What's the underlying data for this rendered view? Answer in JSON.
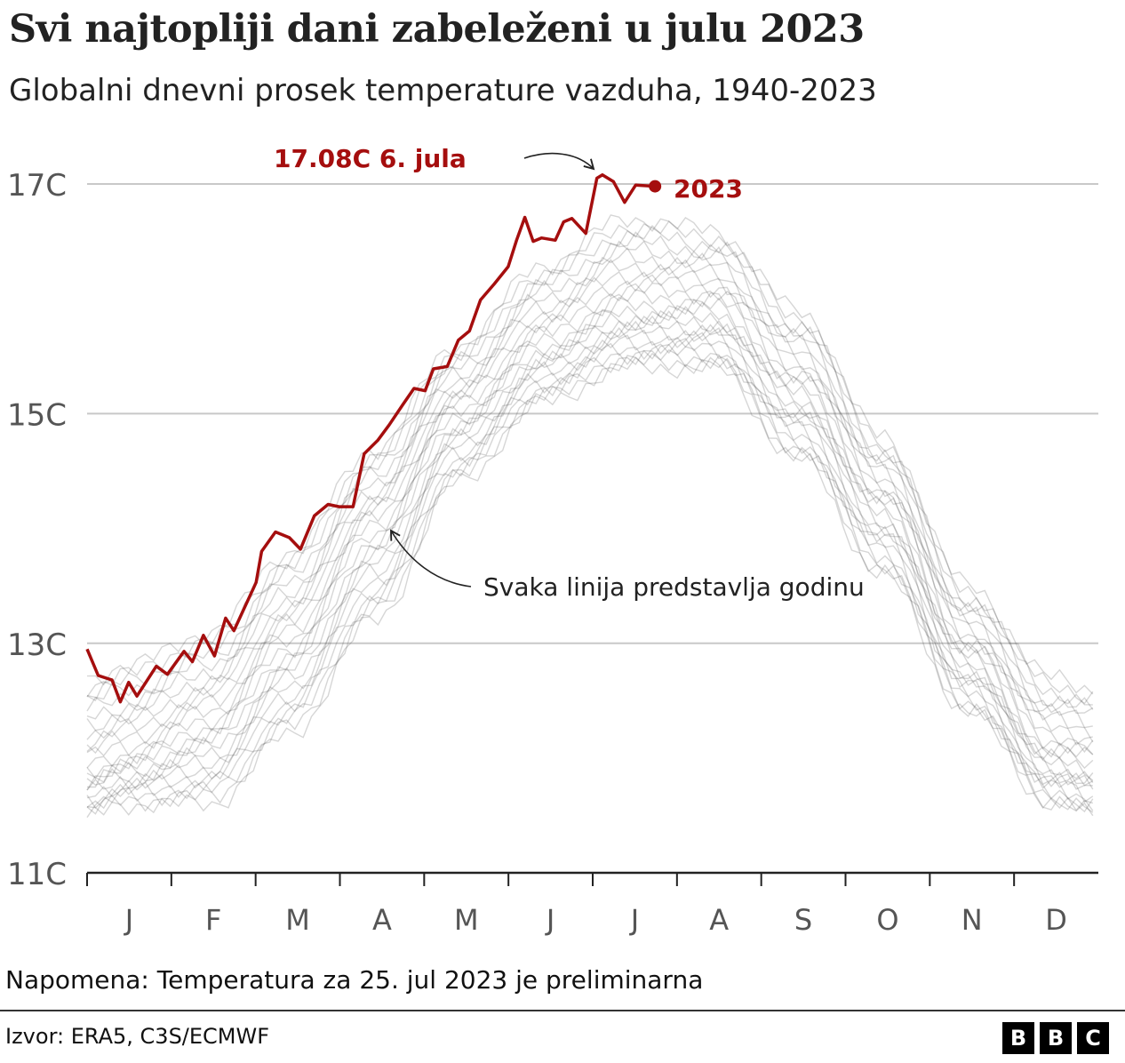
{
  "title": "Svi najtopliji dani zabeleženi u julu 2023",
  "subtitle": "Globalni dnevni prosek temperature vazduha, 1940-2023",
  "note": "Napomena: Temperatura za 25. jul 2023 je preliminarna",
  "source": "Izvor: ERA5, C3S/ECMWF",
  "logo": [
    "B",
    "B",
    "C"
  ],
  "chart_data": {
    "type": "line",
    "ylim": [
      11,
      17.4
    ],
    "y_ticks": [
      11,
      13,
      15,
      17
    ],
    "y_tick_labels": [
      "11C",
      "13C",
      "15C",
      "17C"
    ],
    "x_unit": "day of year",
    "x_ticks_labels": [
      "J",
      "F",
      "M",
      "A",
      "M",
      "J",
      "J",
      "A",
      "S",
      "O",
      "N",
      "D"
    ],
    "grid": true,
    "highlight_color": "#a50e0e",
    "background_color": "#b0b0b0",
    "annotations": {
      "peak": "17.08C 6. jula",
      "year_label": "2023",
      "lines_note": "Svaka linija predstavlja godinu"
    },
    "series_2023": {
      "name": "2023",
      "day": [
        1,
        5,
        10,
        13,
        16,
        19,
        26,
        30,
        36,
        39,
        43,
        47,
        51,
        54,
        62,
        64,
        69,
        74,
        78,
        83,
        88,
        92,
        97,
        101,
        106,
        110,
        115,
        119,
        123,
        126,
        131,
        135,
        139,
        143,
        148,
        153,
        156,
        159,
        162,
        165,
        170,
        173,
        176,
        181,
        185,
        187,
        191,
        195,
        199,
        206
      ],
      "temp": [
        12.95,
        12.72,
        12.68,
        12.49,
        12.66,
        12.54,
        12.8,
        12.73,
        12.93,
        12.84,
        13.07,
        12.89,
        13.22,
        13.11,
        13.53,
        13.8,
        13.97,
        13.92,
        13.82,
        14.11,
        14.21,
        14.19,
        14.19,
        14.65,
        14.77,
        14.9,
        15.08,
        15.22,
        15.2,
        15.39,
        15.41,
        15.64,
        15.72,
        15.99,
        16.13,
        16.28,
        16.51,
        16.71,
        16.5,
        16.53,
        16.51,
        16.67,
        16.7,
        16.57,
        17.05,
        17.08,
        17.02,
        16.84,
        16.99,
        16.98
      ]
    },
    "other_years_envelope": {
      "month_mid_day": [
        1,
        15,
        46,
        74,
        105,
        135,
        166,
        196,
        227,
        258,
        288,
        319,
        349,
        365
      ],
      "low": [
        11.5,
        11.6,
        11.6,
        12.2,
        13.2,
        14.4,
        15.1,
        15.4,
        15.4,
        14.6,
        13.6,
        12.4,
        11.6,
        11.5
      ],
      "mid": [
        11.9,
        12.0,
        12.3,
        13.0,
        14.0,
        15.0,
        15.6,
        15.9,
        15.9,
        15.2,
        14.2,
        12.9,
        12.0,
        11.9
      ],
      "high": [
        12.7,
        12.8,
        13.1,
        13.8,
        14.7,
        15.6,
        16.3,
        16.7,
        16.6,
        15.9,
        14.8,
        13.5,
        12.7,
        12.6
      ]
    }
  }
}
